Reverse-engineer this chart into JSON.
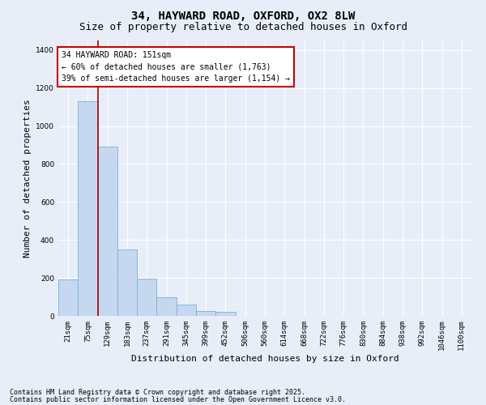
{
  "title_line1": "34, HAYWARD ROAD, OXFORD, OX2 8LW",
  "title_line2": "Size of property relative to detached houses in Oxford",
  "xlabel": "Distribution of detached houses by size in Oxford",
  "ylabel": "Number of detached properties",
  "categories": [
    "21sqm",
    "75sqm",
    "129sqm",
    "183sqm",
    "237sqm",
    "291sqm",
    "345sqm",
    "399sqm",
    "452sqm",
    "506sqm",
    "560sqm",
    "614sqm",
    "668sqm",
    "722sqm",
    "776sqm",
    "830sqm",
    "884sqm",
    "938sqm",
    "992sqm",
    "1046sqm",
    "1100sqm"
  ],
  "values": [
    190,
    1130,
    890,
    350,
    195,
    100,
    58,
    25,
    20,
    0,
    0,
    0,
    0,
    0,
    0,
    0,
    0,
    0,
    0,
    0,
    0
  ],
  "bar_color": "#c5d8f0",
  "bar_edge_color": "#7aafd4",
  "vline_x": 1.5,
  "vline_color": "#aa0000",
  "annotation_text": "34 HAYWARD ROAD: 151sqm\n← 60% of detached houses are smaller (1,763)\n39% of semi-detached houses are larger (1,154) →",
  "annotation_box_color": "#cc0000",
  "annotation_fill": "#ffffff",
  "ylim": [
    0,
    1450
  ],
  "yticks": [
    0,
    200,
    400,
    600,
    800,
    1000,
    1200,
    1400
  ],
  "background_color": "#e8eef8",
  "plot_bg_color": "#e8eef8",
  "footer_line1": "Contains HM Land Registry data © Crown copyright and database right 2025.",
  "footer_line2": "Contains public sector information licensed under the Open Government Licence v3.0.",
  "grid_color": "#ffffff",
  "title_fontsize": 10,
  "subtitle_fontsize": 9,
  "annotation_fontsize": 7,
  "tick_fontsize": 6.5,
  "label_fontsize": 8,
  "footer_fontsize": 6
}
